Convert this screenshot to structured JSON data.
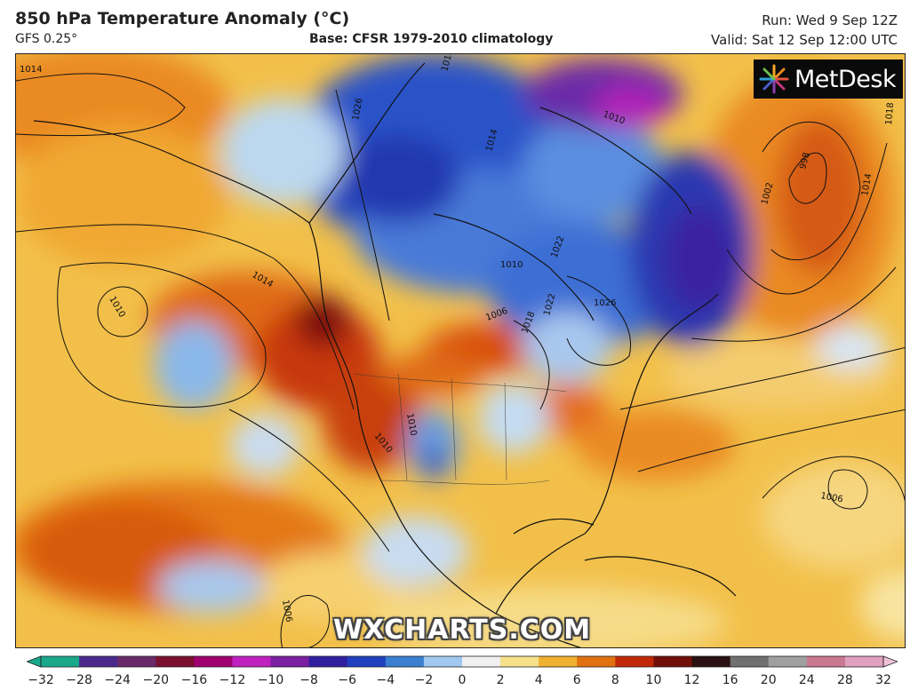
{
  "header": {
    "title": "850 hPa Temperature Anomaly (°C)",
    "model": "GFS 0.25°",
    "base": "Base: CFSR 1979-2010 climatology",
    "run": "Run: Wed 9 Sep 12Z",
    "valid": "Valid: Sat 12 Sep 12:00 UTC"
  },
  "branding": {
    "logo": "MetDesk",
    "watermark": "WXCHARTS.COM",
    "logo_icon": "starburst-icon"
  },
  "isobar_labels": [
    "1014",
    "1026",
    "1010",
    "1014",
    "1010",
    "1014",
    "1010",
    "1006",
    "1018",
    "1022",
    "1026",
    "1010",
    "1010",
    "1010",
    "1022",
    "998",
    "1002",
    "1014",
    "1018",
    "1006",
    "1006"
  ],
  "colorbar": {
    "ticks": [
      "−32",
      "−28",
      "−24",
      "−20",
      "−16",
      "−12",
      "−10",
      "−8",
      "−6",
      "−4",
      "−2",
      "0",
      "2",
      "4",
      "6",
      "8",
      "10",
      "12",
      "16",
      "20",
      "24",
      "28",
      "32"
    ],
    "colors": [
      "#1aa88a",
      "#4b2a8c",
      "#6a2a6a",
      "#7a1030",
      "#a00070",
      "#c020c0",
      "#7a20a0",
      "#3020a0",
      "#2040c0",
      "#3a7fd0",
      "#a0c8f0",
      "#f0f0f0",
      "#f6e08a",
      "#f0b030",
      "#e07010",
      "#c02808",
      "#701008",
      "#2a1010",
      "#707070",
      "#a0a0a0",
      "#c87890",
      "#e0a0c0"
    ]
  },
  "legend_colors": {
    "warm": "#e07a1a",
    "hot": "#b8280a",
    "mild": "#f4c860",
    "cold": "#2a4fc8",
    "very_cold": "#3a1fa0",
    "extreme_cold": "#a020a0"
  }
}
